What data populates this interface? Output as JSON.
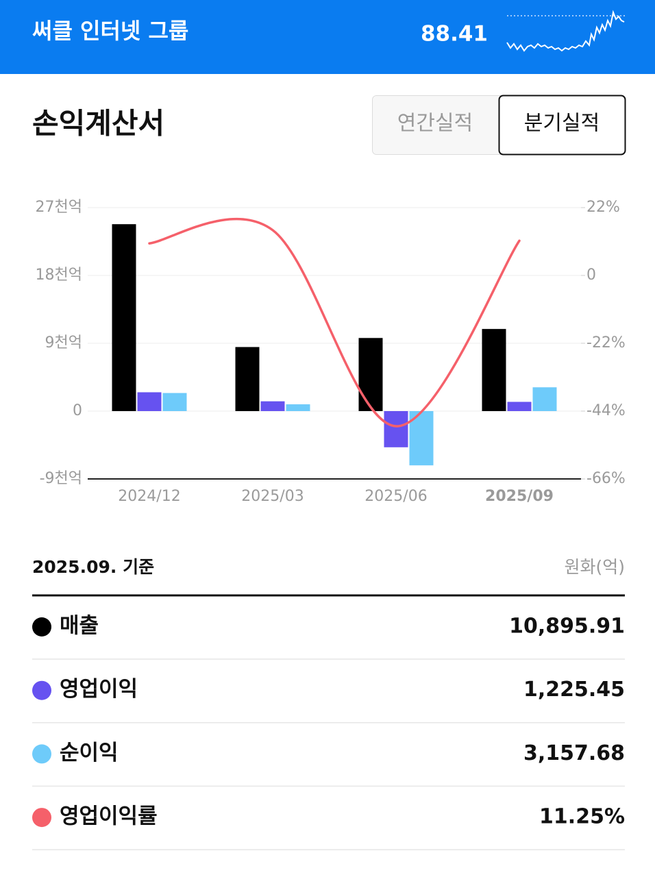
{
  "header": {
    "title": "써클 인터넷 그룹",
    "price": "88.41"
  },
  "section": {
    "title": "손익계산서",
    "tabs": [
      "연간실적",
      "분기실적"
    ]
  },
  "chart_data": {
    "type": "bar",
    "categories": [
      "2024/12",
      "2025/03",
      "2025/06",
      "2025/09"
    ],
    "series": [
      {
        "name": "매출",
        "color": "#000000",
        "values": [
          24800,
          8500,
          9700,
          10895.91
        ]
      },
      {
        "name": "영업이익",
        "color": "#6652f0",
        "values": [
          2500,
          1300,
          -4800,
          1225.45
        ]
      },
      {
        "name": "순이익",
        "color": "#6ecbfa",
        "values": [
          2400,
          900,
          -7200,
          3157.68
        ]
      },
      {
        "name": "영업이익률",
        "color": "#f5606a",
        "type": "line",
        "axis": "y2",
        "values": [
          10.4,
          14.7,
          -48.9,
          11.25
        ]
      }
    ],
    "ylim": [
      -9000,
      27000
    ],
    "yticks": [
      {
        "value": -9000,
        "label": "-9천억"
      },
      0,
      {
        "value": 9000,
        "label": "9천억"
      },
      {
        "value": 18000,
        "label": "18천억"
      },
      {
        "value": 27000,
        "label": "27천억"
      }
    ],
    "y2lim": [
      -66,
      22
    ],
    "y2ticks": [
      {
        "value": -66,
        "label": "-66%"
      },
      {
        "value": -44,
        "label": "-44%"
      },
      {
        "value": -22,
        "label": "-22%"
      },
      0,
      {
        "value": 22,
        "label": "22%"
      }
    ],
    "grid": true
  },
  "table": {
    "basis": "2025.09. 기준",
    "unit": "원화(억)",
    "rows": [
      {
        "value": "10,895.91"
      },
      {
        "value": "1,225.45"
      },
      {
        "value": "3,157.68"
      },
      {
        "value": "11.25%"
      }
    ]
  }
}
